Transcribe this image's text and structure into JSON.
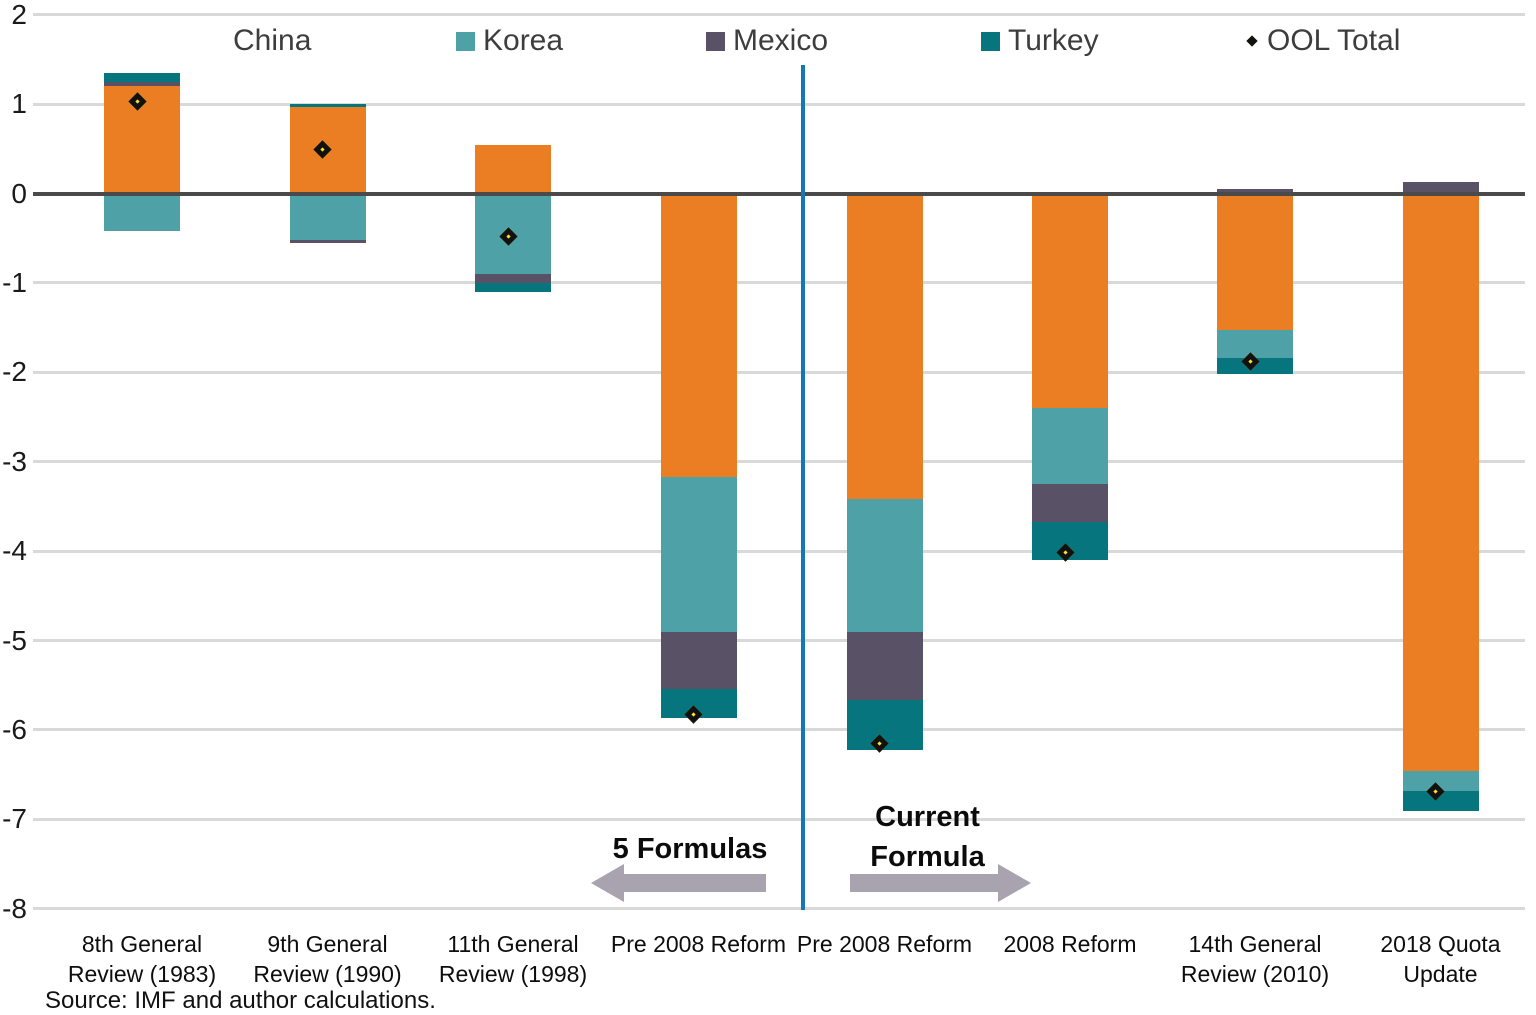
{
  "legend": {
    "items": [
      {
        "label": "China",
        "marker": "none",
        "swatch": null
      },
      {
        "label": "Korea",
        "marker": "square",
        "swatch": "#4ea1a6"
      },
      {
        "label": "Mexico",
        "marker": "square",
        "swatch": "#595266"
      },
      {
        "label": "Turkey",
        "marker": "square",
        "swatch": "#06757d"
      },
      {
        "label": "OOL Total",
        "marker": "diamond",
        "swatch": "#ffe713"
      }
    ]
  },
  "annotations": {
    "left_label": "5 Formulas",
    "right_label_line1": "Current",
    "right_label_line2": "Formula"
  },
  "source": "Source: IMF and author calculations.",
  "chart_data": {
    "type": "bar",
    "subtype": "diverging-stacked-bar-with-total-markers",
    "title": "",
    "xlabel": "",
    "ylabel": "",
    "ylim": [
      -8,
      2
    ],
    "y_ticks": [
      2,
      1,
      0,
      -1,
      -2,
      -3,
      -4,
      -5,
      -6,
      -7,
      -8
    ],
    "grid": true,
    "legend_position": "top",
    "categories": [
      [
        "8th General",
        "Review (1983)"
      ],
      [
        "9th General",
        "Review (1990)"
      ],
      [
        "11th General",
        "Review (1998)"
      ],
      [
        "Pre 2008 Reform"
      ],
      [
        "Pre 2008 Reform"
      ],
      [
        "2008 Reform"
      ],
      [
        "14th General",
        "Review (2010)"
      ],
      [
        "2018 Quota",
        "Update"
      ]
    ],
    "series": [
      {
        "name": "China",
        "color": "#eb7e23",
        "values": [
          1.2,
          0.97,
          0.54,
          -3.17,
          -3.42,
          -2.4,
          -1.53,
          -6.46
        ]
      },
      {
        "name": "Korea",
        "color": "#4ea1a6",
        "values": [
          -0.42,
          -0.52,
          -0.9,
          -1.74,
          -1.49,
          -0.85,
          -0.31,
          -0.22
        ]
      },
      {
        "name": "Mexico",
        "color": "#595266",
        "values": [
          0.05,
          -0.03,
          -0.1,
          -0.63,
          -0.76,
          -0.42,
          0.05,
          0.13
        ]
      },
      {
        "name": "Turkey",
        "color": "#06757d",
        "values": [
          0.1,
          0.03,
          -0.1,
          -0.33,
          -0.55,
          -0.43,
          -0.18,
          -0.23
        ]
      }
    ],
    "ool_total": {
      "name": "OOL Total",
      "marker": "diamond",
      "fill": "#ffe713",
      "border": "#111111",
      "values": [
        0.97,
        0.44,
        -0.54,
        -5.88,
        -6.21,
        -4.07,
        -1.93,
        -6.75
      ]
    },
    "divider": {
      "between_categories": [
        3,
        4
      ],
      "color": "#1578b5",
      "left_region_label": "5 Formulas",
      "right_region_label": "Current Formula"
    }
  }
}
